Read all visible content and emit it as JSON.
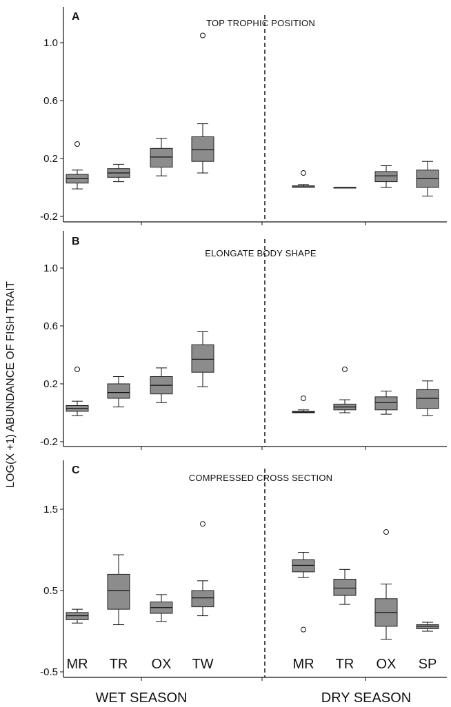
{
  "ylabel": "LOG(X +1) ABUNDANCE OF FISH TRAIT",
  "seasons": {
    "wet": "WET SEASON",
    "dry": "DRY SEASON"
  },
  "colors": {
    "box_fill": "#8c8c8c",
    "axis": "#111111",
    "divider": "#111111"
  },
  "chart_data": [
    {
      "type": "box",
      "panel": "A",
      "title": "TOP TROPHIC POSITION",
      "ylim": [
        -0.22,
        1.23
      ],
      "yticks": [
        -0.2,
        0.2,
        0.6,
        1.0
      ],
      "ytick_labels": [
        "-0.2",
        "0.2",
        "0.6",
        "1.0"
      ],
      "groups": [
        {
          "season": "wet",
          "category": "MR",
          "whisker_low": -0.01,
          "q1": 0.03,
          "median": 0.06,
          "q3": 0.09,
          "whisker_high": 0.12,
          "outliers": [
            0.3
          ]
        },
        {
          "season": "wet",
          "category": "TR",
          "whisker_low": 0.04,
          "q1": 0.07,
          "median": 0.1,
          "q3": 0.13,
          "whisker_high": 0.16,
          "outliers": []
        },
        {
          "season": "wet",
          "category": "OX",
          "whisker_low": 0.08,
          "q1": 0.14,
          "median": 0.21,
          "q3": 0.27,
          "whisker_high": 0.34,
          "outliers": []
        },
        {
          "season": "wet",
          "category": "TW",
          "whisker_low": 0.1,
          "q1": 0.18,
          "median": 0.26,
          "q3": 0.35,
          "whisker_high": 0.44,
          "outliers": [
            1.05
          ]
        },
        {
          "season": "dry",
          "category": "MR",
          "whisker_low": 0.0,
          "q1": 0.0,
          "median": 0.01,
          "q3": 0.01,
          "whisker_high": 0.02,
          "outliers": [
            0.1
          ]
        },
        {
          "season": "dry",
          "category": "TR",
          "whisker_low": 0.0,
          "q1": 0.0,
          "median": 0.0,
          "q3": 0.0,
          "whisker_high": 0.0,
          "outliers": []
        },
        {
          "season": "dry",
          "category": "OX",
          "whisker_low": 0.0,
          "q1": 0.04,
          "median": 0.08,
          "q3": 0.11,
          "whisker_high": 0.15,
          "outliers": []
        },
        {
          "season": "dry",
          "category": "SP",
          "whisker_low": -0.06,
          "q1": 0.0,
          "median": 0.06,
          "q3": 0.12,
          "whisker_high": 0.18,
          "outliers": []
        }
      ]
    },
    {
      "type": "box",
      "panel": "B",
      "title": "ELONGATE BODY SHAPE",
      "ylim": [
        -0.22,
        1.23
      ],
      "yticks": [
        -0.2,
        0.2,
        0.6,
        1.0
      ],
      "ytick_labels": [
        "-0.2",
        "0.2",
        "0.6",
        "1.0"
      ],
      "groups": [
        {
          "season": "wet",
          "category": "MR",
          "whisker_low": -0.02,
          "q1": 0.01,
          "median": 0.03,
          "q3": 0.05,
          "whisker_high": 0.08,
          "outliers": [
            0.3
          ]
        },
        {
          "season": "wet",
          "category": "TR",
          "whisker_low": 0.04,
          "q1": 0.1,
          "median": 0.14,
          "q3": 0.2,
          "whisker_high": 0.25,
          "outliers": []
        },
        {
          "season": "wet",
          "category": "OX",
          "whisker_low": 0.07,
          "q1": 0.13,
          "median": 0.19,
          "q3": 0.25,
          "whisker_high": 0.31,
          "outliers": []
        },
        {
          "season": "wet",
          "category": "TW",
          "whisker_low": 0.18,
          "q1": 0.28,
          "median": 0.37,
          "q3": 0.47,
          "whisker_high": 0.56,
          "outliers": []
        },
        {
          "season": "dry",
          "category": "MR",
          "whisker_low": 0.0,
          "q1": 0.0,
          "median": 0.005,
          "q3": 0.01,
          "whisker_high": 0.02,
          "outliers": [
            0.1
          ]
        },
        {
          "season": "dry",
          "category": "TR",
          "whisker_low": 0.0,
          "q1": 0.02,
          "median": 0.04,
          "q3": 0.06,
          "whisker_high": 0.09,
          "outliers": [
            0.3
          ]
        },
        {
          "season": "dry",
          "category": "OX",
          "whisker_low": -0.01,
          "q1": 0.02,
          "median": 0.07,
          "q3": 0.11,
          "whisker_high": 0.15,
          "outliers": []
        },
        {
          "season": "dry",
          "category": "SP",
          "whisker_low": -0.02,
          "q1": 0.03,
          "median": 0.1,
          "q3": 0.16,
          "whisker_high": 0.22,
          "outliers": []
        }
      ]
    },
    {
      "type": "box",
      "panel": "C",
      "title": "COMPRESSED CROSS SECTION",
      "ylim": [
        -0.55,
        2.0
      ],
      "yticks": [
        -0.5,
        0.5,
        1.5
      ],
      "ytick_labels": [
        "-0.5",
        "0.5",
        "1.5"
      ],
      "groups": [
        {
          "season": "wet",
          "category": "MR",
          "whisker_low": 0.1,
          "q1": 0.14,
          "median": 0.19,
          "q3": 0.23,
          "whisker_high": 0.27,
          "outliers": []
        },
        {
          "season": "wet",
          "category": "TR",
          "whisker_low": 0.08,
          "q1": 0.27,
          "median": 0.5,
          "q3": 0.7,
          "whisker_high": 0.94,
          "outliers": []
        },
        {
          "season": "wet",
          "category": "OX",
          "whisker_low": 0.12,
          "q1": 0.22,
          "median": 0.29,
          "q3": 0.36,
          "whisker_high": 0.45,
          "outliers": []
        },
        {
          "season": "wet",
          "category": "TW",
          "whisker_low": 0.19,
          "q1": 0.3,
          "median": 0.41,
          "q3": 0.5,
          "whisker_high": 0.62,
          "outliers": [
            1.32
          ]
        },
        {
          "season": "dry",
          "category": "MR",
          "whisker_low": 0.66,
          "q1": 0.73,
          "median": 0.81,
          "q3": 0.88,
          "whisker_high": 0.97,
          "outliers": [
            0.02
          ]
        },
        {
          "season": "dry",
          "category": "TR",
          "whisker_low": 0.33,
          "q1": 0.44,
          "median": 0.53,
          "q3": 0.64,
          "whisker_high": 0.76,
          "outliers": []
        },
        {
          "season": "dry",
          "category": "OX",
          "whisker_low": -0.1,
          "q1": 0.06,
          "median": 0.23,
          "q3": 0.4,
          "whisker_high": 0.58,
          "outliers": [
            1.22
          ]
        },
        {
          "season": "dry",
          "category": "SP",
          "whisker_low": 0.0,
          "q1": 0.03,
          "median": 0.06,
          "q3": 0.08,
          "whisker_high": 0.11,
          "outliers": []
        }
      ]
    }
  ]
}
